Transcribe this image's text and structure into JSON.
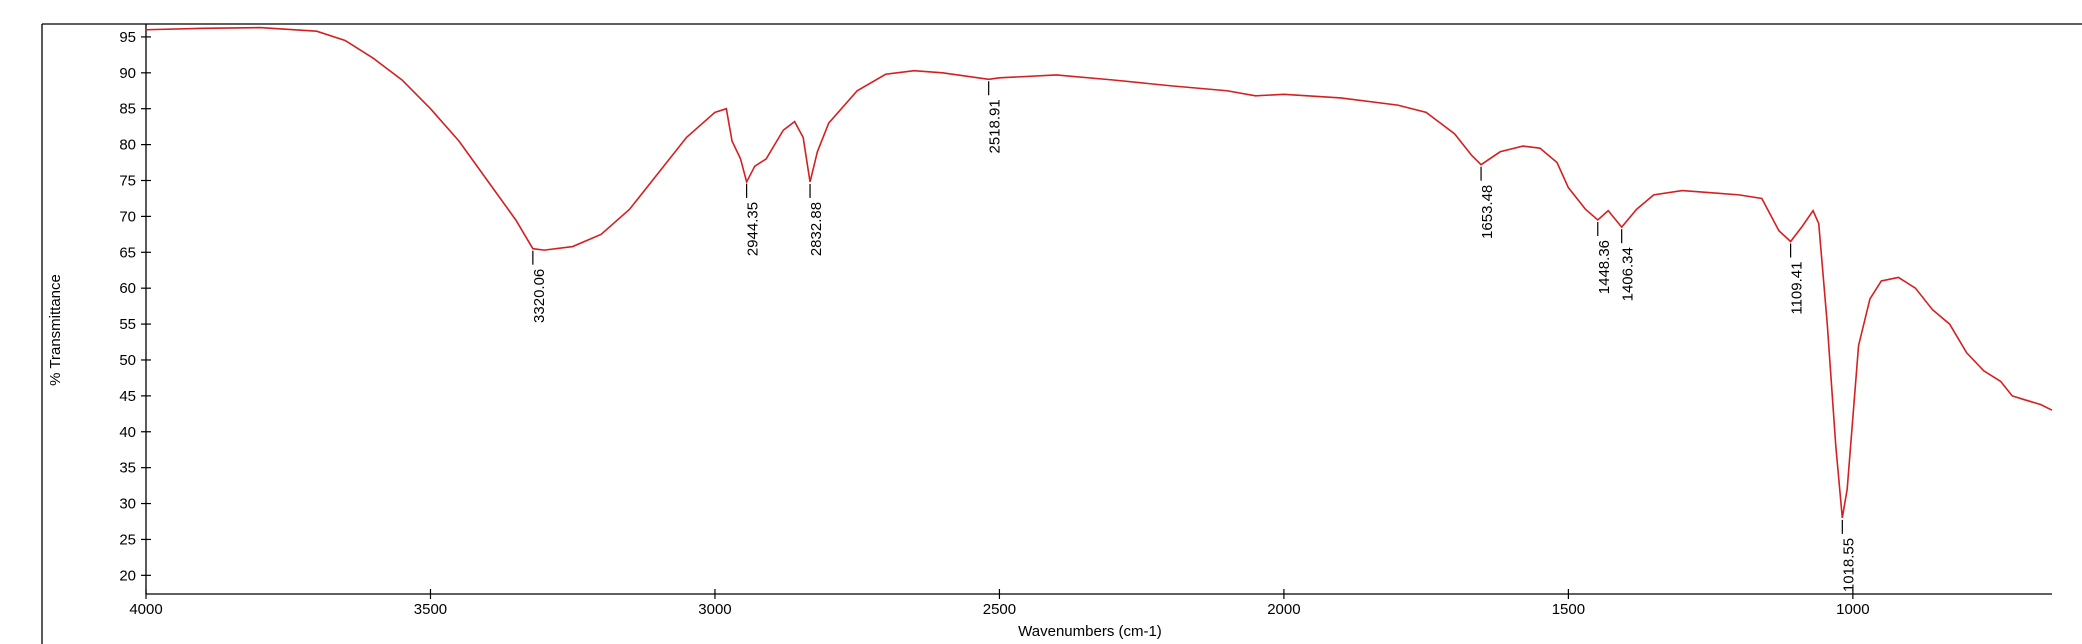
{
  "chart_data": {
    "type": "line",
    "xlabel": "Wavenumbers (cm-1)",
    "ylabel": "% Transmittance",
    "color": "#d42020",
    "xlim": [
      4000,
      650
    ],
    "xticks": [
      4000,
      3500,
      3000,
      2500,
      2000,
      1500,
      1000
    ],
    "ylim": [
      17.4,
      96.8
    ],
    "yticks": [
      20,
      25,
      30,
      35,
      40,
      45,
      50,
      55,
      60,
      65,
      70,
      75,
      80,
      85,
      90,
      95
    ],
    "x": [
      4000,
      3900,
      3800,
      3700,
      3650,
      3600,
      3550,
      3500,
      3450,
      3400,
      3350,
      3320.06,
      3300,
      3250,
      3200,
      3150,
      3100,
      3050,
      3000,
      2980,
      2970,
      2955,
      2944.35,
      2930,
      2910,
      2880,
      2860,
      2845,
      2832.88,
      2820,
      2800,
      2750,
      2700,
      2650,
      2600,
      2518.91,
      2500,
      2400,
      2300,
      2200,
      2100,
      2050,
      2000,
      1900,
      1800,
      1750,
      1700,
      1670,
      1653.48,
      1620,
      1580,
      1550,
      1520,
      1500,
      1470,
      1448.36,
      1430,
      1406.34,
      1380,
      1350,
      1300,
      1250,
      1200,
      1160,
      1130,
      1109.41,
      1090,
      1070,
      1060,
      1045,
      1030,
      1018.55,
      1010,
      1000,
      990,
      970,
      950,
      920,
      890,
      860,
      830,
      800,
      770,
      740,
      720,
      700,
      670,
      650
    ],
    "values": [
      96,
      96.2,
      96.3,
      95.8,
      94.5,
      92,
      89,
      85,
      80.5,
      75,
      69.5,
      65.5,
      65.3,
      65.8,
      67.5,
      71,
      76,
      81,
      84.5,
      85,
      80.5,
      78,
      74.8,
      77,
      78,
      82,
      83.2,
      81,
      74.8,
      79,
      83,
      87.5,
      89.8,
      90.3,
      90,
      89.1,
      89.3,
      89.7,
      89,
      88.2,
      87.5,
      86.8,
      87,
      86.5,
      85.5,
      84.5,
      81.5,
      78.5,
      77.2,
      79,
      79.8,
      79.5,
      77.5,
      74,
      71,
      69.5,
      70.8,
      68.5,
      71,
      73,
      73.6,
      73.3,
      73,
      72.5,
      68,
      66.5,
      68.5,
      70.8,
      69,
      55,
      38,
      28,
      32,
      42,
      52,
      58.5,
      61,
      61.5,
      60,
      57,
      55,
      51,
      48.5,
      47,
      45,
      44.5,
      43.8,
      43
    ],
    "annotations": [
      {
        "x": 3320.06,
        "y": 65.5
      },
      {
        "x": 2944.35,
        "y": 74.8
      },
      {
        "x": 2832.88,
        "y": 74.8
      },
      {
        "x": 2518.91,
        "y": 89.1
      },
      {
        "x": 1653.48,
        "y": 77.2
      },
      {
        "x": 1448.36,
        "y": 69.5
      },
      {
        "x": 1406.34,
        "y": 68.5
      },
      {
        "x": 1109.41,
        "y": 66.5
      },
      {
        "x": 1018.55,
        "y": 28
      }
    ]
  }
}
